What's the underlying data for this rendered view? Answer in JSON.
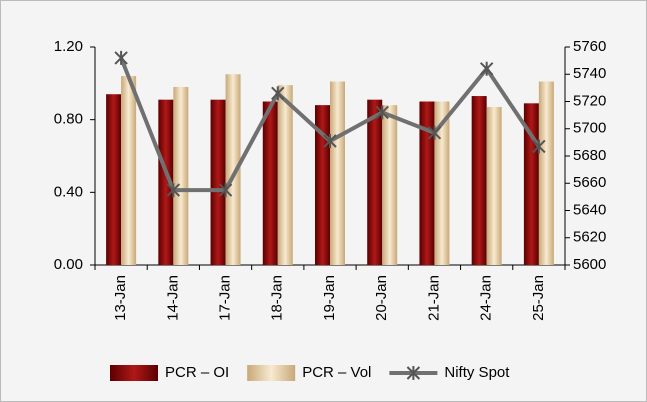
{
  "chart_data": {
    "type": "bar",
    "categories": [
      "13-Jan",
      "14-Jan",
      "17-Jan",
      "18-Jan",
      "19-Jan",
      "20-Jan",
      "21-Jan",
      "24-Jan",
      "25-Jan"
    ],
    "series": [
      {
        "name": "PCR – OI",
        "color": "#8b0a0a",
        "values": [
          0.94,
          0.91,
          0.91,
          0.9,
          0.88,
          0.91,
          0.9,
          0.93,
          0.89
        ]
      },
      {
        "name": "PCR – Vol",
        "color": "#e6cc9c",
        "values": [
          1.04,
          0.98,
          1.05,
          0.99,
          1.01,
          0.88,
          0.9,
          0.87,
          1.01
        ]
      },
      {
        "name": "Nifty Spot",
        "color": "#707070",
        "type": "line",
        "axis": "y2",
        "values": [
          5752,
          5655,
          5655,
          5726,
          5691,
          5712,
          5697,
          5744,
          5687
        ]
      }
    ],
    "ylim": [
      0,
      1.2
    ],
    "yticks": [
      {
        "value": 0,
        "label": "0.00"
      },
      {
        "value": 0.4,
        "label": "0.40"
      },
      {
        "value": 0.8,
        "label": "0.80"
      },
      {
        "value": 1.2,
        "label": "1.20"
      }
    ],
    "y2lim": [
      5600,
      5760
    ],
    "y2ticks": [
      5600,
      5620,
      5640,
      5660,
      5680,
      5700,
      5720,
      5740,
      5760
    ],
    "grid": false,
    "legend": "bottom"
  }
}
